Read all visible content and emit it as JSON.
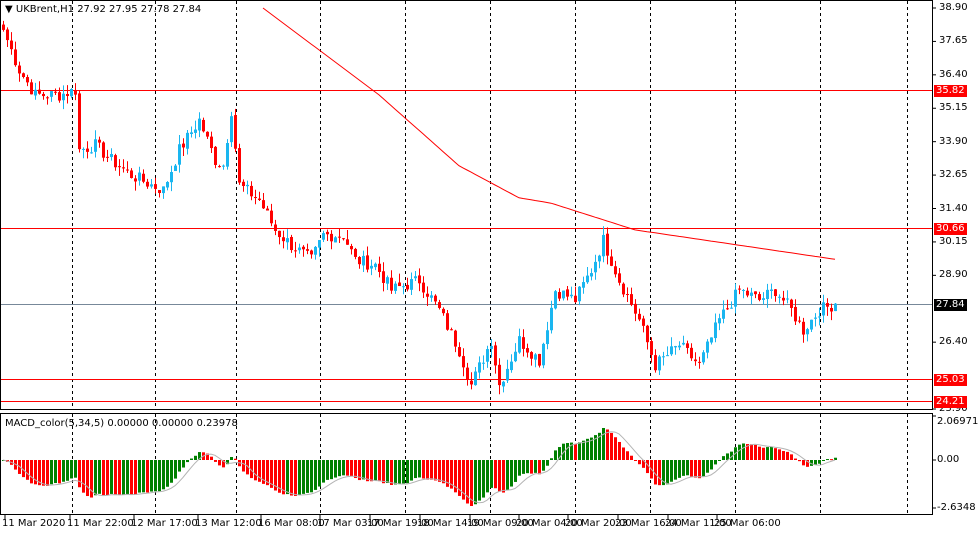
{
  "header": {
    "symbol": "UKBrent,H1",
    "ohlc": "27.92 27.95 27.78 27.84"
  },
  "indicator": {
    "title": "MACD_color(5,34,5) 0.00000 0.00000 0.23978",
    "ticks": [
      "2.06971",
      "0.00",
      "-2.6348"
    ]
  },
  "price_axis": {
    "ticks": [
      "38.90",
      "37.65",
      "36.40",
      "35.15",
      "33.90",
      "32.65",
      "31.40",
      "30.15",
      "28.90",
      "26.40",
      "23.90"
    ]
  },
  "price_axis_values": [
    38.9,
    37.65,
    36.4,
    35.15,
    33.9,
    32.65,
    31.4,
    30.15,
    28.9,
    26.4,
    23.9
  ],
  "levels": [
    {
      "label": "35.82",
      "value": 35.82,
      "color": "#ff0000"
    },
    {
      "label": "30.66",
      "value": 30.66,
      "color": "#ff0000"
    },
    {
      "label": "25.03",
      "value": 25.03,
      "color": "#ff0000"
    },
    {
      "label": "24.21",
      "value": 24.21,
      "color": "#ff0000"
    }
  ],
  "current_price": {
    "label": "27.84",
    "value": 27.84
  },
  "time_axis": [
    "11 Mar 2020",
    "11 Mar 22:00",
    "12 Mar 17:00",
    "13 Mar 12:00",
    "16 Mar 08:00",
    "17 Mar 03:00",
    "17 Mar 19:00",
    "18 Mar 14:00",
    "19 Mar 09:00",
    "20 Mar 04:00",
    "20 Mar 20:00",
    "23 Mar 16:00",
    "24 Mar 11:00",
    "25 Mar 06:00"
  ],
  "colors": {
    "bull": "#1ab6f0",
    "bear": "#ff0000",
    "ma": "#ff0000",
    "hist_up": "#008000",
    "hist_down": "#ff0000",
    "signal": "#b4b4b4"
  },
  "chart_data": {
    "type": "candlestick",
    "ylim": [
      23.9,
      38.9
    ],
    "close_path": [
      [
        0,
        38.08
      ],
      [
        4,
        36.58
      ],
      [
        8,
        35.65
      ],
      [
        14,
        35.65
      ],
      [
        18,
        35.83
      ],
      [
        19,
        33.59
      ],
      [
        23,
        33.77
      ],
      [
        27,
        33.21
      ],
      [
        32,
        32.65
      ],
      [
        37,
        32.28
      ],
      [
        40,
        32.09
      ],
      [
        44,
        33.59
      ],
      [
        49,
        34.71
      ],
      [
        53,
        33.21
      ],
      [
        55,
        33.03
      ],
      [
        57,
        35.08
      ],
      [
        59,
        32.28
      ],
      [
        64,
        31.72
      ],
      [
        68,
        30.59
      ],
      [
        72,
        30.03
      ],
      [
        77,
        29.47
      ],
      [
        80,
        30.41
      ],
      [
        85,
        30.41
      ],
      [
        88,
        29.47
      ],
      [
        93,
        29.29
      ],
      [
        97,
        28.35
      ],
      [
        104,
        28.72
      ],
      [
        109,
        27.6
      ],
      [
        114,
        26.1
      ],
      [
        117,
        24.8
      ],
      [
        122,
        26.48
      ],
      [
        124,
        24.8
      ],
      [
        129,
        26.48
      ],
      [
        134,
        25.73
      ],
      [
        138,
        28.35
      ],
      [
        143,
        27.98
      ],
      [
        147,
        29.1
      ],
      [
        150,
        30.22
      ],
      [
        154,
        28.72
      ],
      [
        159,
        27.23
      ],
      [
        163,
        25.54
      ],
      [
        169,
        26.29
      ],
      [
        174,
        25.54
      ],
      [
        179,
        27.23
      ],
      [
        184,
        28.35
      ],
      [
        189,
        27.98
      ],
      [
        193,
        28.35
      ],
      [
        197,
        27.6
      ],
      [
        200,
        26.85
      ],
      [
        204,
        27.6
      ],
      [
        208,
        27.84
      ]
    ],
    "ma_path": [
      [
        65,
        38.9
      ],
      [
        94,
        35.65
      ],
      [
        114,
        33.0
      ],
      [
        129,
        31.8
      ],
      [
        137,
        31.6
      ],
      [
        158,
        30.6
      ],
      [
        208,
        29.5
      ]
    ]
  }
}
